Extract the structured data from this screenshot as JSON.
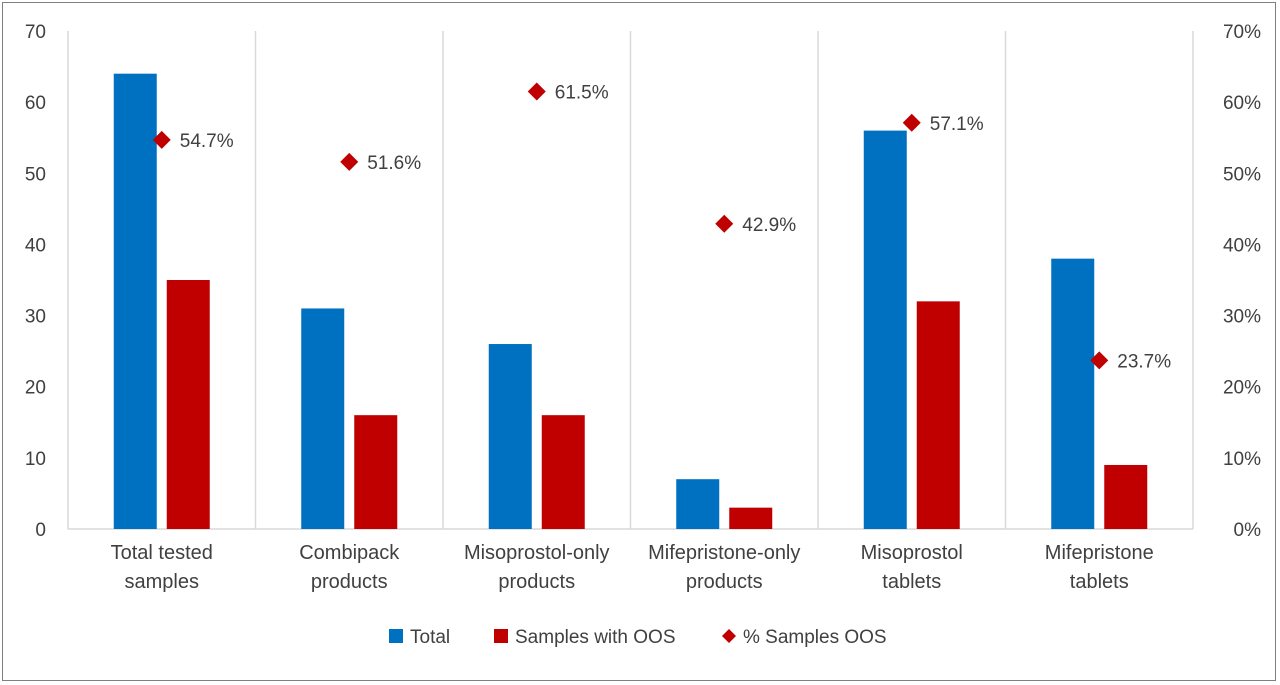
{
  "chart_data": {
    "type": "bar",
    "categories": [
      [
        "Total tested",
        "samples"
      ],
      [
        "Combipack",
        "products"
      ],
      [
        "Misoprostol-only",
        "products"
      ],
      [
        "Mifepristone-only",
        "products"
      ],
      [
        "Misoprostol",
        "tablets"
      ],
      [
        "Mifepristone",
        "tablets"
      ]
    ],
    "series": [
      {
        "name": "Total",
        "kind": "bar",
        "axis": "left",
        "color": "#0070C0",
        "values": [
          64,
          31,
          26,
          7,
          56,
          38
        ]
      },
      {
        "name": "Samples with OOS",
        "kind": "bar",
        "axis": "left",
        "color": "#C00000",
        "values": [
          35,
          16,
          16,
          3,
          32,
          9
        ]
      },
      {
        "name": "% Samples OOS",
        "kind": "marker",
        "marker": "diamond",
        "axis": "right",
        "color": "#C00000",
        "values": [
          54.7,
          51.6,
          61.5,
          42.9,
          57.1,
          23.7
        ],
        "labels": [
          "54.7%",
          "51.6%",
          "61.5%",
          "42.9%",
          "57.1%",
          "23.7%"
        ]
      }
    ],
    "y_left": {
      "range": [
        0,
        70
      ],
      "ticks": [
        "0",
        "10",
        "20",
        "30",
        "40",
        "50",
        "60",
        "70"
      ]
    },
    "y_right": {
      "range": [
        0,
        70
      ],
      "ticks": [
        "0%",
        "10%",
        "20%",
        "30%",
        "40%",
        "50%",
        "60%",
        "70%"
      ]
    },
    "grid": "vertical",
    "legend_position": "bottom"
  }
}
